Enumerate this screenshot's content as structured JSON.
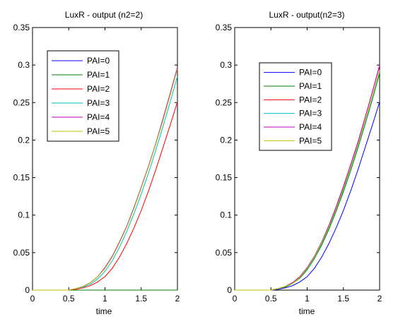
{
  "chart_data": [
    {
      "type": "line",
      "title": "LuxR - output (n2=2)",
      "xlabel": "time",
      "ylabel": "",
      "xlim": [
        0,
        2
      ],
      "ylim": [
        0,
        0.35
      ],
      "xticks": [
        0,
        0.5,
        1,
        1.5,
        2
      ],
      "yticks": [
        0,
        0.05,
        0.1,
        0.15,
        0.2,
        0.25,
        0.3,
        0.35
      ],
      "xtick_labels": [
        "0",
        "0.5",
        "1",
        "1.5",
        "2"
      ],
      "ytick_labels": [
        "0",
        "0.05",
        "0.1",
        "0.15",
        "0.2",
        "0.25",
        "0.3",
        "0.35"
      ],
      "legend_position": "top-left",
      "grid": false,
      "series": [
        {
          "name": "PAI=0",
          "color": "#0000ff",
          "x": [
            0,
            0.5,
            0.6,
            0.7,
            0.8,
            0.9,
            1.0,
            1.1,
            1.2,
            1.3,
            1.4,
            1.5,
            1.6,
            1.7,
            1.8,
            1.9,
            2.0
          ],
          "values": [
            0,
            0,
            0.002,
            0.005,
            0.01,
            0.018,
            0.03,
            0.045,
            0.064,
            0.085,
            0.11,
            0.137,
            0.165,
            0.195,
            0.228,
            0.262,
            0.297
          ]
        },
        {
          "name": "PAI=1",
          "color": "#008000",
          "x": [
            0,
            0.5,
            1.0,
            1.5,
            2.0
          ],
          "values": [
            0,
            0,
            0,
            0,
            0
          ]
        },
        {
          "name": "PAI=2",
          "color": "#ff0000",
          "x": [
            0,
            0.5,
            0.6,
            0.7,
            0.8,
            0.9,
            1.0,
            1.1,
            1.2,
            1.3,
            1.4,
            1.5,
            1.6,
            1.7,
            1.8,
            1.9,
            2.0
          ],
          "values": [
            0,
            0,
            0.001,
            0.003,
            0.006,
            0.011,
            0.018,
            0.029,
            0.044,
            0.062,
            0.083,
            0.106,
            0.132,
            0.16,
            0.19,
            0.22,
            0.251
          ]
        },
        {
          "name": "PAI=3",
          "color": "#00bfbf",
          "x": [
            0,
            0.5,
            0.6,
            0.7,
            0.8,
            0.9,
            1.0,
            1.1,
            1.2,
            1.3,
            1.4,
            1.5,
            1.6,
            1.7,
            1.8,
            1.9,
            2.0
          ],
          "values": [
            0,
            0,
            0.002,
            0.004,
            0.008,
            0.015,
            0.025,
            0.039,
            0.057,
            0.078,
            0.102,
            0.128,
            0.156,
            0.186,
            0.218,
            0.251,
            0.285
          ]
        },
        {
          "name": "PAI=4",
          "color": "#bf00bf",
          "x": [
            0,
            0.5,
            0.6,
            0.7,
            0.8,
            0.9,
            1.0,
            1.1,
            1.2,
            1.3,
            1.4,
            1.5,
            1.6,
            1.7,
            1.8,
            1.9,
            2.0
          ],
          "values": [
            0,
            0,
            0.002,
            0.005,
            0.01,
            0.018,
            0.03,
            0.045,
            0.064,
            0.085,
            0.11,
            0.137,
            0.165,
            0.195,
            0.228,
            0.262,
            0.297
          ]
        },
        {
          "name": "PAI=5",
          "color": "#bfbf00",
          "x": [
            0,
            0.5,
            0.6,
            0.7,
            0.8,
            0.9,
            1.0,
            1.1,
            1.2,
            1.3,
            1.4,
            1.5,
            1.6,
            1.7,
            1.8,
            1.9,
            2.0
          ],
          "values": [
            0,
            0,
            0.002,
            0.005,
            0.01,
            0.018,
            0.029,
            0.044,
            0.063,
            0.084,
            0.109,
            0.136,
            0.164,
            0.194,
            0.226,
            0.26,
            0.295
          ]
        }
      ]
    },
    {
      "type": "line",
      "title": "LuxR - output(n2=3)",
      "xlabel": "time",
      "ylabel": "",
      "xlim": [
        0,
        2
      ],
      "ylim": [
        0,
        0.35
      ],
      "xticks": [
        0,
        0.5,
        1,
        1.5,
        2
      ],
      "yticks": [
        0,
        0.05,
        0.1,
        0.15,
        0.2,
        0.25,
        0.3,
        0.35
      ],
      "xtick_labels": [
        "0",
        "0.5",
        "1",
        "1.5",
        "2"
      ],
      "ytick_labels": [
        "0",
        "0.05",
        "0.1",
        "0.15",
        "0.2",
        "0.25",
        "0.3",
        "0.35"
      ],
      "legend_position": "top-center",
      "grid": false,
      "series": [
        {
          "name": "PAI=0",
          "color": "#0000ff",
          "x": [
            0,
            0.5,
            0.6,
            0.7,
            0.8,
            0.9,
            1.0,
            1.1,
            1.2,
            1.3,
            1.4,
            1.5,
            1.6,
            1.7,
            1.8,
            1.9,
            2.0
          ],
          "values": [
            0,
            0,
            0.001,
            0.003,
            0.006,
            0.011,
            0.018,
            0.029,
            0.044,
            0.062,
            0.083,
            0.106,
            0.132,
            0.16,
            0.19,
            0.22,
            0.251
          ]
        },
        {
          "name": "PAI=1",
          "color": "#008000",
          "x": [
            0,
            0.5,
            0.6,
            0.7,
            0.8,
            0.9,
            1.0,
            1.1,
            1.2,
            1.3,
            1.4,
            1.5,
            1.6,
            1.7,
            1.8,
            1.9,
            2.0
          ],
          "values": [
            0,
            0,
            0.002,
            0.004,
            0.009,
            0.016,
            0.027,
            0.042,
            0.06,
            0.081,
            0.105,
            0.131,
            0.159,
            0.189,
            0.221,
            0.254,
            0.289
          ]
        },
        {
          "name": "PAI=2",
          "color": "#ff0000",
          "x": [
            0,
            0.5,
            0.6,
            0.7,
            0.8,
            0.9,
            1.0,
            1.1,
            1.2,
            1.3,
            1.4,
            1.5,
            1.6,
            1.7,
            1.8,
            1.9,
            2.0
          ],
          "values": [
            0,
            0,
            0.002,
            0.005,
            0.01,
            0.018,
            0.03,
            0.045,
            0.064,
            0.086,
            0.111,
            0.138,
            0.167,
            0.197,
            0.23,
            0.264,
            0.299
          ]
        },
        {
          "name": "PAI=3",
          "color": "#00bfbf",
          "x": [
            0,
            0.5,
            0.6,
            0.7,
            0.8,
            0.9,
            1.0,
            1.1,
            1.2,
            1.3,
            1.4,
            1.5,
            1.6,
            1.7,
            1.8,
            1.9,
            2.0
          ],
          "values": [
            0,
            0,
            0.002,
            0.005,
            0.009,
            0.017,
            0.028,
            0.043,
            0.062,
            0.083,
            0.107,
            0.133,
            0.161,
            0.191,
            0.223,
            0.256,
            0.291
          ]
        },
        {
          "name": "PAI=4",
          "color": "#bf00bf",
          "x": [
            0,
            0.5,
            0.6,
            0.7,
            0.8,
            0.9,
            1.0,
            1.1,
            1.2,
            1.3,
            1.4,
            1.5,
            1.6,
            1.7,
            1.8,
            1.9,
            2.0
          ],
          "values": [
            0,
            0,
            0.002,
            0.005,
            0.01,
            0.018,
            0.03,
            0.045,
            0.064,
            0.086,
            0.111,
            0.138,
            0.167,
            0.197,
            0.23,
            0.264,
            0.3
          ]
        },
        {
          "name": "PAI=5",
          "color": "#bfbf00",
          "x": [
            0,
            0.5,
            0.6,
            0.7,
            0.8,
            0.9,
            1.0,
            1.1,
            1.2,
            1.3,
            1.4,
            1.5,
            1.6,
            1.7,
            1.8,
            1.9,
            2.0
          ],
          "values": [
            0,
            0,
            0.002,
            0.005,
            0.009,
            0.017,
            0.029,
            0.044,
            0.063,
            0.084,
            0.108,
            0.135,
            0.163,
            0.193,
            0.225,
            0.258,
            0.293
          ]
        }
      ]
    }
  ]
}
